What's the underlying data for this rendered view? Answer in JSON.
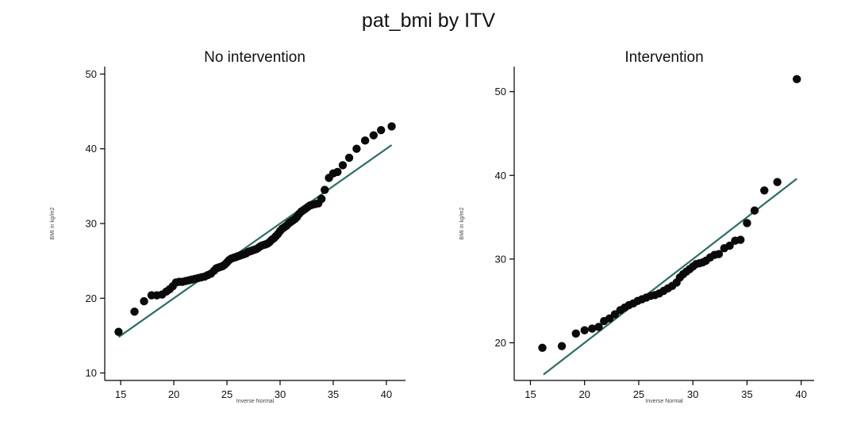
{
  "title": "pat_bmi by ITV",
  "chart_data": [
    {
      "type": "scatter",
      "title": "No intervention",
      "xlabel": "Inverse Normal",
      "ylabel": "BMI in kg/m2",
      "xlim": [
        13.5,
        41.8
      ],
      "ylim": [
        9,
        51
      ],
      "xticks": [
        15,
        20,
        25,
        30,
        35,
        40
      ],
      "yticks": [
        10,
        20,
        30,
        40,
        50
      ],
      "reference_line": {
        "x": [
          14.8,
          40.5
        ],
        "y": [
          14.8,
          40.5
        ]
      },
      "line_color": "#2e6b66",
      "point_color": "#0a0a0a",
      "points": [
        [
          14.8,
          15.5
        ],
        [
          16.3,
          18.2
        ],
        [
          17.2,
          19.6
        ],
        [
          17.9,
          20.4
        ],
        [
          18.4,
          20.4
        ],
        [
          18.9,
          20.5
        ],
        [
          19.3,
          20.9
        ],
        [
          19.6,
          21.2
        ],
        [
          19.9,
          21.6
        ],
        [
          20.2,
          22.1
        ],
        [
          20.5,
          22.2
        ],
        [
          20.8,
          22.2
        ],
        [
          21.1,
          22.3
        ],
        [
          21.4,
          22.4
        ],
        [
          21.7,
          22.5
        ],
        [
          22.0,
          22.6
        ],
        [
          22.3,
          22.7
        ],
        [
          22.6,
          22.8
        ],
        [
          22.9,
          22.9
        ],
        [
          23.2,
          23.1
        ],
        [
          23.5,
          23.3
        ],
        [
          23.8,
          23.7
        ],
        [
          24.0,
          24.0
        ],
        [
          24.2,
          24.1
        ],
        [
          24.4,
          24.2
        ],
        [
          24.6,
          24.3
        ],
        [
          24.8,
          24.5
        ],
        [
          25.0,
          24.8
        ],
        [
          25.2,
          25.1
        ],
        [
          25.4,
          25.3
        ],
        [
          25.6,
          25.4
        ],
        [
          25.8,
          25.5
        ],
        [
          26.0,
          25.6
        ],
        [
          26.2,
          25.7
        ],
        [
          26.4,
          25.8
        ],
        [
          26.6,
          25.9
        ],
        [
          26.8,
          26.0
        ],
        [
          27.0,
          26.2
        ],
        [
          27.2,
          26.3
        ],
        [
          27.4,
          26.4
        ],
        [
          27.6,
          26.5
        ],
        [
          27.8,
          26.6
        ],
        [
          28.0,
          26.8
        ],
        [
          28.2,
          27.0
        ],
        [
          28.4,
          27.1
        ],
        [
          28.6,
          27.2
        ],
        [
          28.8,
          27.3
        ],
        [
          29.0,
          27.5
        ],
        [
          29.2,
          27.8
        ],
        [
          29.4,
          28.0
        ],
        [
          29.6,
          28.3
        ],
        [
          29.8,
          28.6
        ],
        [
          30.0,
          29.0
        ],
        [
          30.2,
          29.3
        ],
        [
          30.4,
          29.5
        ],
        [
          30.6,
          29.7
        ],
        [
          30.8,
          30.0
        ],
        [
          31.0,
          30.2
        ],
        [
          31.2,
          30.4
        ],
        [
          31.4,
          30.6
        ],
        [
          31.6,
          30.9
        ],
        [
          31.8,
          31.3
        ],
        [
          32.0,
          31.6
        ],
        [
          32.2,
          31.8
        ],
        [
          32.4,
          32.0
        ],
        [
          32.6,
          32.2
        ],
        [
          32.8,
          32.4
        ],
        [
          33.0,
          32.5
        ],
        [
          33.3,
          32.6
        ],
        [
          33.6,
          32.7
        ],
        [
          33.9,
          33.3
        ],
        [
          34.2,
          34.5
        ],
        [
          34.6,
          36.1
        ],
        [
          35.0,
          36.7
        ],
        [
          35.4,
          36.9
        ],
        [
          35.9,
          37.8
        ],
        [
          36.5,
          38.8
        ],
        [
          37.2,
          40.0
        ],
        [
          38.0,
          41.1
        ],
        [
          38.8,
          41.8
        ],
        [
          39.5,
          42.5
        ],
        [
          40.5,
          43.0
        ]
      ]
    },
    {
      "type": "scatter",
      "title": "Intervention",
      "xlabel": "Inverse Normal",
      "ylabel": "BMI in kg/m2",
      "xlim": [
        13.5,
        41.2
      ],
      "ylim": [
        15.5,
        53
      ],
      "xticks": [
        15,
        20,
        25,
        30,
        35,
        40
      ],
      "yticks": [
        20,
        30,
        40,
        50
      ],
      "reference_line": {
        "x": [
          16.2,
          39.6
        ],
        "y": [
          16.2,
          39.6
        ]
      },
      "line_color": "#2e6b66",
      "point_color": "#0a0a0a",
      "points": [
        [
          16.1,
          19.4
        ],
        [
          17.9,
          19.6
        ],
        [
          19.2,
          21.1
        ],
        [
          20.0,
          21.5
        ],
        [
          20.7,
          21.7
        ],
        [
          21.3,
          21.9
        ],
        [
          21.8,
          22.6
        ],
        [
          22.3,
          22.9
        ],
        [
          22.8,
          23.4
        ],
        [
          23.3,
          23.9
        ],
        [
          23.7,
          24.2
        ],
        [
          24.1,
          24.5
        ],
        [
          24.5,
          24.7
        ],
        [
          24.9,
          25.0
        ],
        [
          25.3,
          25.2
        ],
        [
          25.7,
          25.4
        ],
        [
          26.1,
          25.6
        ],
        [
          26.5,
          25.7
        ],
        [
          26.9,
          25.9
        ],
        [
          27.3,
          26.2
        ],
        [
          27.7,
          26.5
        ],
        [
          28.1,
          26.8
        ],
        [
          28.5,
          27.2
        ],
        [
          28.8,
          27.8
        ],
        [
          29.1,
          28.2
        ],
        [
          29.4,
          28.5
        ],
        [
          29.7,
          28.8
        ],
        [
          30.0,
          29.1
        ],
        [
          30.3,
          29.4
        ],
        [
          30.6,
          29.5
        ],
        [
          30.9,
          29.6
        ],
        [
          31.2,
          29.8
        ],
        [
          31.6,
          30.2
        ],
        [
          32.0,
          30.5
        ],
        [
          32.4,
          30.6
        ],
        [
          32.9,
          31.3
        ],
        [
          33.4,
          31.6
        ],
        [
          33.9,
          32.2
        ],
        [
          34.4,
          32.3
        ],
        [
          35.0,
          34.3
        ],
        [
          35.7,
          35.8
        ],
        [
          36.6,
          38.2
        ],
        [
          37.8,
          39.2
        ],
        [
          39.6,
          51.5
        ]
      ]
    }
  ]
}
